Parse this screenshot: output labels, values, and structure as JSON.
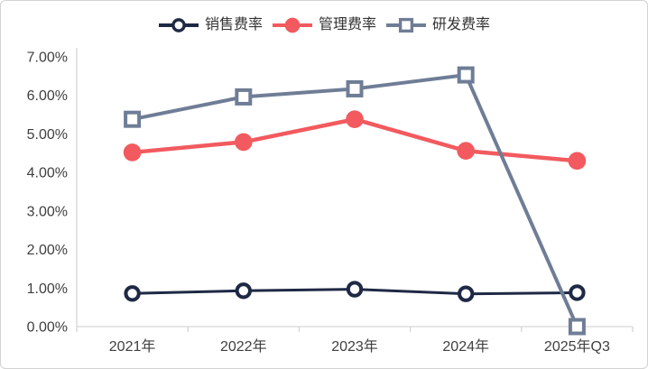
{
  "chart_data": {
    "type": "line",
    "categories": [
      "2021年",
      "2022年",
      "2023年",
      "2024年",
      "2025年Q3"
    ],
    "series": [
      {
        "name": "销售费率",
        "color": "#1e2945",
        "marker": "open-circle",
        "line_width": 3,
        "values": [
          0.86,
          0.93,
          0.97,
          0.85,
          0.88
        ]
      },
      {
        "name": "管理费率",
        "color": "#f25a5f",
        "marker": "filled-circle",
        "line_width": 4.5,
        "values": [
          4.52,
          4.79,
          5.38,
          4.56,
          4.3
        ]
      },
      {
        "name": "研发费率",
        "color": "#6f7d96",
        "marker": "open-square",
        "line_width": 4,
        "values": [
          5.38,
          5.96,
          6.17,
          6.53,
          0.0
        ]
      }
    ],
    "ylim": [
      0,
      7
    ],
    "ytick_labels": [
      "0.00%",
      "1.00%",
      "2.00%",
      "3.00%",
      "4.00%",
      "5.00%",
      "6.00%",
      "7.00%"
    ],
    "legend_position": "top",
    "grid": false,
    "axis_color": "#d6d6d6",
    "tick_label_color": "#3f3f3f"
  }
}
